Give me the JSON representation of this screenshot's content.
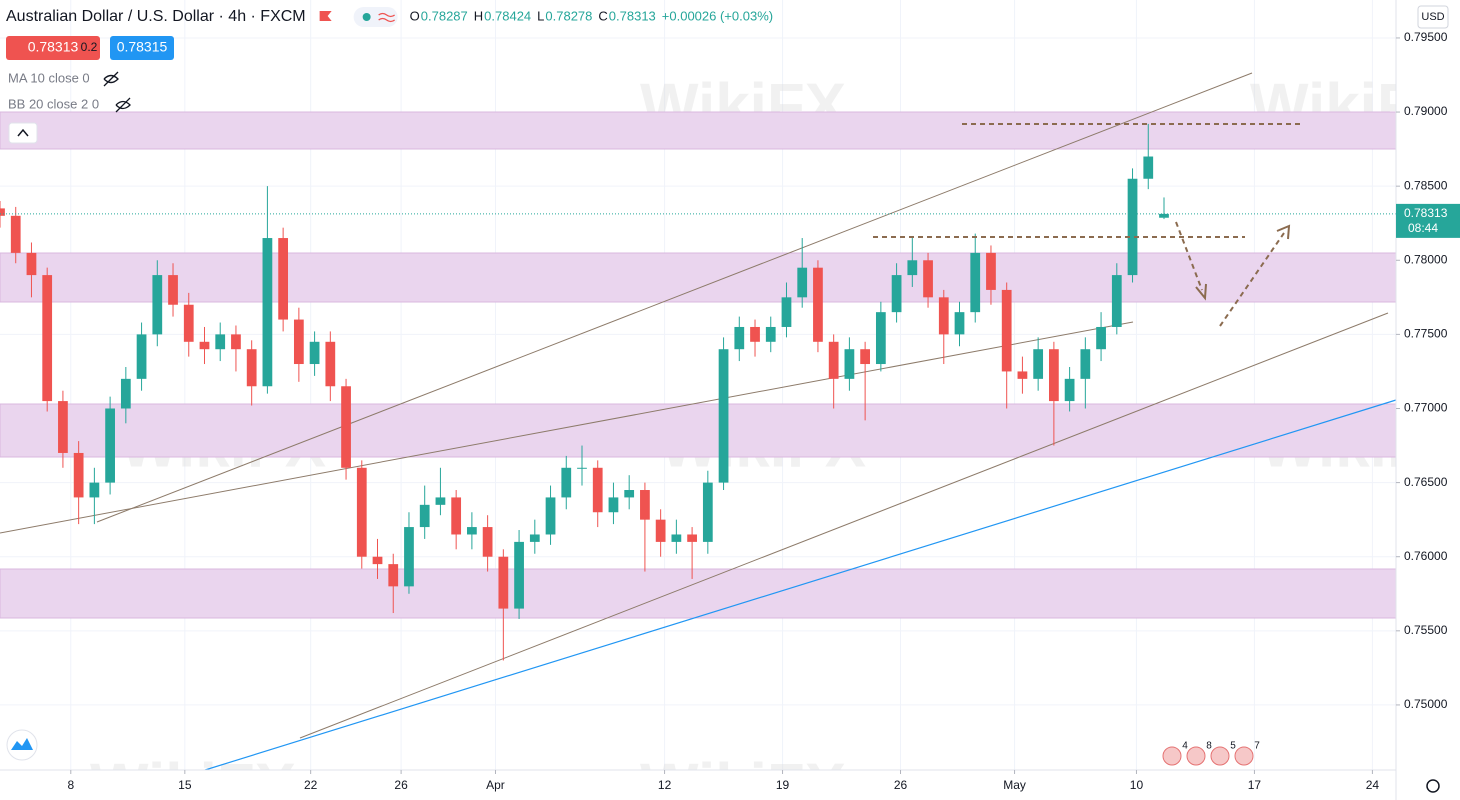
{
  "chart_data": {
    "type": "candlestick",
    "title": "Australian Dollar / U.S. Dollar · 4h · FXCM",
    "ohlc_labels": [
      "O",
      "H",
      "L",
      "C"
    ],
    "change": "+0.00026 (+0.03%)",
    "bid": 0.78313,
    "spread": 0.2,
    "ask": 0.78315,
    "indicators": [
      "MA 10 close 0",
      "BB 20 close 2 0"
    ],
    "currency": "USD",
    "countdown": "08:44",
    "watermark": "WikiFX",
    "events": [
      "4",
      "8",
      "5",
      "7"
    ],
    "up_color": "#26a69a",
    "down_color": "#ef5350",
    "x": [
      0,
      4,
      8,
      12,
      16,
      20,
      24,
      28,
      32,
      36,
      40,
      44,
      48,
      52,
      56,
      60,
      64,
      68,
      72,
      76,
      80,
      84,
      88,
      92,
      96,
      100,
      104,
      108,
      112,
      116,
      120,
      124,
      128,
      132,
      136,
      140,
      144,
      148,
      152,
      156,
      160,
      164,
      168,
      172,
      176,
      180,
      184,
      188,
      192,
      196,
      200,
      204,
      208,
      212,
      216,
      220,
      224,
      228,
      232,
      236,
      240,
      244,
      248,
      252,
      256,
      260,
      264,
      268,
      272,
      276,
      280,
      284,
      288,
      292,
      296
    ],
    "open": [
      0.7835,
      0.783,
      0.7805,
      0.779,
      0.7705,
      0.767,
      0.764,
      0.765,
      0.77,
      0.772,
      0.775,
      0.779,
      0.777,
      0.7745,
      0.774,
      0.775,
      0.774,
      0.7715,
      0.7815,
      0.776,
      0.773,
      0.7745,
      0.7715,
      0.766,
      0.76,
      0.7595,
      0.758,
      0.762,
      0.7635,
      0.764,
      0.7615,
      0.762,
      0.76,
      0.7565,
      0.761,
      0.7615,
      0.764,
      0.766,
      0.766,
      0.763,
      0.764,
      0.7645,
      0.7625,
      0.761,
      0.7615,
      0.761,
      0.765,
      0.774,
      0.7755,
      0.7745,
      0.7755,
      0.7775,
      0.7795,
      0.7745,
      0.772,
      0.774,
      0.773,
      0.7765,
      0.779,
      0.78,
      0.7775,
      0.775,
      0.7765,
      0.7805,
      0.778,
      0.7725,
      0.772,
      0.774,
      0.7705,
      0.772,
      0.774,
      0.7755,
      0.779,
      0.7855,
      0.78287
    ],
    "high": [
      0.784,
      0.7836,
      0.7812,
      0.7795,
      0.7712,
      0.7678,
      0.766,
      0.7708,
      0.7728,
      0.7758,
      0.78,
      0.7798,
      0.7778,
      0.7755,
      0.7758,
      0.7756,
      0.7746,
      0.785,
      0.7822,
      0.7768,
      0.7752,
      0.7752,
      0.772,
      0.7665,
      0.7612,
      0.7602,
      0.763,
      0.7648,
      0.766,
      0.7645,
      0.763,
      0.7628,
      0.7605,
      0.7618,
      0.7625,
      0.7648,
      0.7668,
      0.7675,
      0.7665,
      0.765,
      0.7655,
      0.765,
      0.7632,
      0.7625,
      0.762,
      0.7658,
      0.7748,
      0.7762,
      0.776,
      0.7762,
      0.7785,
      0.7815,
      0.78,
      0.775,
      0.7748,
      0.7745,
      0.7772,
      0.7798,
      0.7815,
      0.7805,
      0.778,
      0.7772,
      0.7818,
      0.781,
      0.7785,
      0.7735,
      0.7748,
      0.7745,
      0.7728,
      0.7748,
      0.7765,
      0.7798,
      0.7862,
      0.7892,
      0.78424
    ],
    "low": [
      0.7822,
      0.7798,
      0.7775,
      0.7698,
      0.766,
      0.7622,
      0.7622,
      0.7642,
      0.769,
      0.7712,
      0.7742,
      0.7762,
      0.7735,
      0.773,
      0.7732,
      0.7725,
      0.7702,
      0.771,
      0.7752,
      0.7718,
      0.7722,
      0.7705,
      0.7652,
      0.7592,
      0.7585,
      0.7562,
      0.7575,
      0.7612,
      0.7628,
      0.7605,
      0.7605,
      0.759,
      0.753,
      0.7558,
      0.7602,
      0.7608,
      0.7632,
      0.7648,
      0.762,
      0.7622,
      0.7632,
      0.759,
      0.76,
      0.7602,
      0.7585,
      0.7602,
      0.7645,
      0.7732,
      0.7735,
      0.7738,
      0.7748,
      0.7768,
      0.7738,
      0.77,
      0.7712,
      0.7692,
      0.7725,
      0.7758,
      0.7782,
      0.7768,
      0.773,
      0.7742,
      0.7758,
      0.777,
      0.77,
      0.771,
      0.7712,
      0.7675,
      0.7698,
      0.77,
      0.7732,
      0.775,
      0.7785,
      0.7848,
      0.78278
    ],
    "close": [
      0.783,
      0.7805,
      0.779,
      0.7705,
      0.767,
      0.764,
      0.765,
      0.77,
      0.772,
      0.775,
      0.779,
      0.777,
      0.7745,
      0.774,
      0.775,
      0.774,
      0.7715,
      0.7815,
      0.776,
      0.773,
      0.7745,
      0.7715,
      0.766,
      0.76,
      0.7595,
      0.758,
      0.762,
      0.7635,
      0.764,
      0.7615,
      0.762,
      0.76,
      0.7565,
      0.761,
      0.7615,
      0.764,
      0.766,
      0.766,
      0.763,
      0.764,
      0.7645,
      0.7625,
      0.761,
      0.7615,
      0.761,
      0.765,
      0.774,
      0.7755,
      0.7745,
      0.7755,
      0.7775,
      0.7795,
      0.7745,
      0.772,
      0.774,
      0.773,
      0.7765,
      0.779,
      0.78,
      0.7775,
      0.775,
      0.7765,
      0.7805,
      0.778,
      0.7725,
      0.772,
      0.774,
      0.7705,
      0.772,
      0.774,
      0.7755,
      0.779,
      0.7855,
      0.787,
      0.78313
    ],
    "xlim": [
      0,
      355
    ],
    "ylim": [
      0.74561,
      0.79756
    ],
    "xticks": [
      {
        "value": 18,
        "label": "8"
      },
      {
        "value": 47,
        "label": "15"
      },
      {
        "value": 79,
        "label": "22"
      },
      {
        "value": 102,
        "label": "26"
      },
      {
        "value": 126,
        "label": "Apr"
      },
      {
        "value": 169,
        "label": "12"
      },
      {
        "value": 199,
        "label": "19"
      },
      {
        "value": 229,
        "label": "26"
      },
      {
        "value": 258,
        "label": "May"
      },
      {
        "value": 289,
        "label": "10"
      },
      {
        "value": 319,
        "label": "17"
      },
      {
        "value": 349,
        "label": "24"
      }
    ],
    "yticks": [
      {
        "value": 0.75,
        "label": "0.75000"
      },
      {
        "value": 0.755,
        "label": "0.75500"
      },
      {
        "value": 0.76,
        "label": "0.76000"
      },
      {
        "value": 0.765,
        "label": "0.76500"
      },
      {
        "value": 0.77,
        "label": "0.77000"
      },
      {
        "value": 0.775,
        "label": "0.77500"
      },
      {
        "value": 0.78,
        "label": "0.78000"
      },
      {
        "value": 0.785,
        "label": "0.78500"
      },
      {
        "value": 0.79,
        "label": "0.79000"
      },
      {
        "value": 0.795,
        "label": "0.79500"
      }
    ],
    "grid": true
  }
}
